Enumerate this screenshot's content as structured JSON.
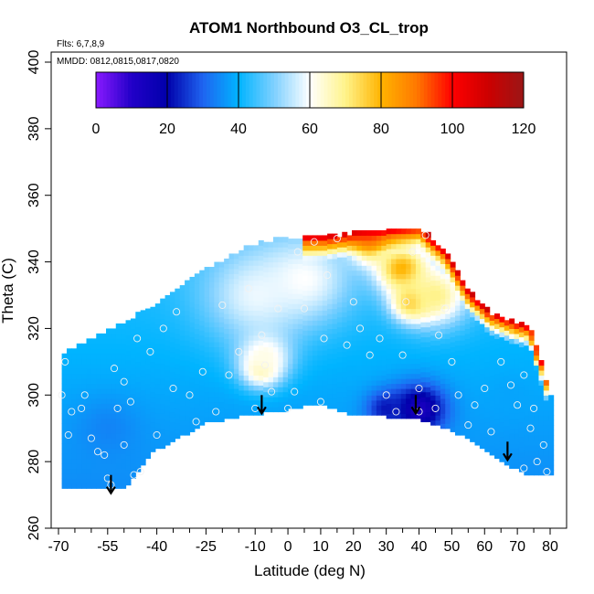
{
  "chart_data": {
    "type": "heatmap",
    "title": "ATOM1 Northbound O3_CL_trop",
    "note_flights": "Flts: 6,7,8,9",
    "note_dates": "MMDD: 0812,0815,0817,0820",
    "xlabel": "Latitude (deg N)",
    "ylabel": "Theta (C)",
    "xlim": [
      -71,
      83
    ],
    "ylim": [
      260,
      405
    ],
    "x_tick_labels": [
      "-70",
      "-55",
      "-40",
      "-25",
      "-10",
      "0",
      "10",
      "20",
      "30",
      "40",
      "50",
      "60",
      "70",
      "80"
    ],
    "x_tick_values": [
      -70,
      -55,
      -40,
      -25,
      -10,
      0,
      10,
      20,
      30,
      40,
      50,
      60,
      70,
      80
    ],
    "x_minor_ticks": [
      -65,
      -60,
      -50,
      -45,
      -35,
      -30,
      -20,
      -15,
      -5,
      5,
      15,
      25,
      35,
      45,
      55,
      65,
      75
    ],
    "y_tick_labels": [
      "260",
      "280",
      "300",
      "320",
      "340",
      "360",
      "380",
      "400"
    ],
    "y_tick_values": [
      260,
      280,
      300,
      320,
      340,
      360,
      380,
      400
    ],
    "colorbar": {
      "min": 0,
      "max": 120,
      "tick_labels": [
        "0",
        "20",
        "40",
        "60",
        "80",
        "100",
        "120"
      ],
      "tick_values": [
        0,
        20,
        40,
        60,
        80,
        100,
        120
      ],
      "stops": [
        {
          "v": 0,
          "c": "#8a1aff"
        },
        {
          "v": 10,
          "c": "#2200c8"
        },
        {
          "v": 20,
          "c": "#0000aa"
        },
        {
          "v": 30,
          "c": "#1e64f0"
        },
        {
          "v": 40,
          "c": "#00b4ff"
        },
        {
          "v": 50,
          "c": "#7fd0ff"
        },
        {
          "v": 60,
          "c": "#ffffff"
        },
        {
          "v": 70,
          "c": "#fff38a"
        },
        {
          "v": 80,
          "c": "#ffb400"
        },
        {
          "v": 90,
          "c": "#ff7800"
        },
        {
          "v": 100,
          "c": "#ff0000"
        },
        {
          "v": 110,
          "c": "#cc0000"
        },
        {
          "v": 120,
          "c": "#9a1616"
        }
      ]
    },
    "field": {
      "baseline_value": 36,
      "lower_boundary": [
        [
          -69,
          272
        ],
        [
          -50,
          272
        ],
        [
          -42,
          283
        ],
        [
          -25,
          292
        ],
        [
          -15,
          294
        ],
        [
          -8,
          295
        ],
        [
          0,
          296
        ],
        [
          10,
          298
        ],
        [
          18,
          295
        ],
        [
          30,
          294
        ],
        [
          40,
          293
        ],
        [
          50,
          290
        ],
        [
          60,
          284
        ],
        [
          68,
          279
        ],
        [
          75,
          276
        ],
        [
          80,
          276
        ]
      ],
      "upper_boundary": [
        [
          -69,
          312
        ],
        [
          -60,
          316
        ],
        [
          -50,
          321
        ],
        [
          -40,
          327
        ],
        [
          -30,
          334
        ],
        [
          -20,
          340
        ],
        [
          -12,
          344
        ],
        [
          -5,
          346
        ],
        [
          5,
          347
        ],
        [
          12,
          347
        ],
        [
          20,
          348
        ],
        [
          30,
          349
        ],
        [
          40,
          350
        ],
        [
          48,
          343
        ],
        [
          55,
          331
        ],
        [
          62,
          324
        ],
        [
          70,
          321
        ],
        [
          74,
          320
        ],
        [
          80,
          300
        ]
      ],
      "features": [
        {
          "x": -10,
          "y": 330,
          "r": 16,
          "value": 58
        },
        {
          "x": 5,
          "y": 335,
          "r": 14,
          "value": 60
        },
        {
          "x": -8,
          "y": 308,
          "r": 6,
          "value": 70
        },
        {
          "x": -7,
          "y": 312,
          "r": 8,
          "value": 62
        },
        {
          "x": 35,
          "y": 338,
          "r": 8,
          "value": 82
        },
        {
          "x": 38,
          "y": 328,
          "r": 6,
          "value": 80
        },
        {
          "x": 45,
          "y": 330,
          "r": 10,
          "value": 70
        },
        {
          "x": 25,
          "y": 345,
          "r": 6,
          "value": 78
        },
        {
          "x": 40,
          "y": 296,
          "r": 8,
          "value": 12
        },
        {
          "x": 30,
          "y": 296,
          "r": 6,
          "value": 22
        },
        {
          "x": -55,
          "y": 290,
          "r": 10,
          "value": 34
        },
        {
          "x": 68,
          "y": 300,
          "r": 6,
          "value": 38
        }
      ],
      "edge_high": [
        {
          "x0": 5,
          "x1": 42,
          "y": 349,
          "value": 100
        },
        {
          "x0": 42,
          "x1": 62,
          "y": 335,
          "value": 105
        },
        {
          "x0": 62,
          "x1": 76,
          "y": 321,
          "value": 100
        },
        {
          "x0": 74,
          "x1": 80,
          "y": 305,
          "value": 95
        }
      ]
    },
    "points": [
      [
        -69,
        300
      ],
      [
        -68,
        310
      ],
      [
        -67,
        288
      ],
      [
        -66,
        295
      ],
      [
        -63,
        296
      ],
      [
        -62,
        300
      ],
      [
        -60,
        287
      ],
      [
        -58,
        283
      ],
      [
        -56,
        282
      ],
      [
        -55,
        275
      ],
      [
        -54,
        273
      ],
      [
        -53,
        308
      ],
      [
        -52,
        296
      ],
      [
        -50,
        285
      ],
      [
        -50,
        304
      ],
      [
        -48,
        298
      ],
      [
        -47,
        276
      ],
      [
        -46,
        317
      ],
      [
        -45,
        277
      ],
      [
        -42,
        313
      ],
      [
        -40,
        288
      ],
      [
        -38,
        320
      ],
      [
        -35,
        302
      ],
      [
        -34,
        325
      ],
      [
        -30,
        300
      ],
      [
        -28,
        292
      ],
      [
        -26,
        307
      ],
      [
        -22,
        295
      ],
      [
        -20,
        327
      ],
      [
        -18,
        306
      ],
      [
        -15,
        313
      ],
      [
        -12,
        332
      ],
      [
        -10,
        296
      ],
      [
        -8,
        318
      ],
      [
        -7,
        309
      ],
      [
        -5,
        301
      ],
      [
        -3,
        326
      ],
      [
        0,
        296
      ],
      [
        2,
        301
      ],
      [
        3,
        343
      ],
      [
        5,
        326
      ],
      [
        8,
        346
      ],
      [
        10,
        298
      ],
      [
        11,
        317
      ],
      [
        12,
        336
      ],
      [
        15,
        347
      ],
      [
        18,
        315
      ],
      [
        20,
        328
      ],
      [
        22,
        320
      ],
      [
        25,
        312
      ],
      [
        28,
        317
      ],
      [
        30,
        300
      ],
      [
        33,
        295
      ],
      [
        35,
        312
      ],
      [
        36,
        328
      ],
      [
        38,
        343
      ],
      [
        40,
        302
      ],
      [
        40,
        295
      ],
      [
        42,
        348
      ],
      [
        45,
        296
      ],
      [
        46,
        318
      ],
      [
        48,
        326
      ],
      [
        50,
        310
      ],
      [
        52,
        300
      ],
      [
        55,
        291
      ],
      [
        57,
        297
      ],
      [
        60,
        302
      ],
      [
        62,
        289
      ],
      [
        65,
        310
      ],
      [
        68,
        303
      ],
      [
        70,
        297
      ],
      [
        72,
        306
      ],
      [
        72,
        278
      ],
      [
        74,
        290
      ],
      [
        75,
        296
      ],
      [
        76,
        280
      ],
      [
        78,
        285
      ],
      [
        79,
        277
      ]
    ],
    "arrows": [
      {
        "x": -54,
        "y_top": 276
      },
      {
        "x": -8,
        "y_top": 300
      },
      {
        "x": 39,
        "y_top": 300
      },
      {
        "x": 67,
        "y_top": 286
      }
    ]
  }
}
